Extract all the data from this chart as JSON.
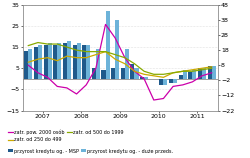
{
  "title": "",
  "left_ylim": [
    -15,
    35
  ],
  "right_ylim": [
    -22,
    48
  ],
  "left_yticks": [
    -15,
    -5,
    5,
    15,
    25,
    35
  ],
  "right_yticks": [
    -22,
    -12,
    -2,
    8,
    18,
    28,
    38,
    48
  ],
  "x_positions": [
    0,
    1,
    2,
    3,
    4,
    5,
    6,
    7,
    8,
    9,
    10,
    11,
    12,
    13,
    14,
    15,
    16,
    17,
    18,
    19
  ],
  "dark_bars": [
    13,
    15,
    16,
    16,
    17,
    16,
    16,
    5,
    4,
    5,
    5,
    7,
    1,
    0,
    -3,
    -2,
    2,
    3,
    5,
    6
  ],
  "light_bars": [
    14,
    16,
    17,
    17,
    18,
    17,
    16,
    14,
    32,
    28,
    14,
    5,
    1,
    0,
    -3,
    -2,
    4,
    4,
    5,
    6
  ],
  "dark_bar_color": "#1f5a8b",
  "light_bar_color": "#6db3d9",
  "line_purple": [
    8,
    3,
    0,
    -6,
    -7,
    -11,
    -5,
    6,
    35,
    26,
    13,
    4,
    -1,
    -15,
    -14,
    -6,
    -5,
    -3,
    1,
    3
  ],
  "line_yellow": [
    10,
    12,
    13,
    11,
    14,
    13,
    13,
    15,
    17,
    12,
    9,
    4,
    2,
    1,
    0,
    3,
    4,
    5,
    6,
    7
  ],
  "line_green": [
    21,
    23,
    22,
    22,
    20,
    18,
    17,
    17,
    17,
    15,
    13,
    9,
    4,
    2,
    2,
    3,
    4,
    4,
    5,
    6
  ],
  "line_purple_color": "#cc00aa",
  "line_yellow_color": "#ccaa00",
  "line_green_color": "#88aa00",
  "xtick_positions": [
    1.5,
    5.5,
    9.5,
    13.5,
    17.5
  ],
  "xtick_labels": [
    "2007",
    "2008",
    "2009",
    "2010",
    "2011"
  ],
  "legend_labels": [
    "przyrost kredytu og. - MSP",
    "przyrost kredytu og. - duże przeds.",
    "zatr. pow. 2000 osób",
    "zatr. od 250 do 499",
    "zatr. od 500 do 1999"
  ],
  "background_color": "#ffffff",
  "grid_color": "#c8c8c8",
  "fontsize_tick": 4.5,
  "fontsize_legend": 3.5
}
